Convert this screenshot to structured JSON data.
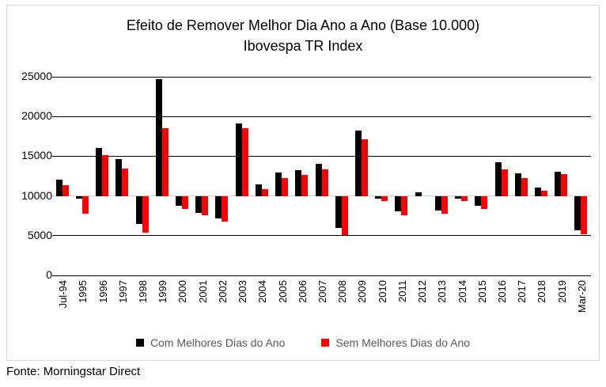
{
  "footer": {
    "source": "Fonte: Morningstar Direct"
  },
  "chart_data": {
    "type": "bar",
    "title": "Efeito de Remover Melhor Dia Ano a Ano (Base 10.000)",
    "subtitle": "Ibovespa TR Index",
    "xlabel": "",
    "ylabel": "",
    "ylim": [
      0,
      25000
    ],
    "yticks": [
      0,
      5000,
      10000,
      15000,
      20000,
      25000
    ],
    "baseline": 10000,
    "grid": true,
    "legend_position": "bottom",
    "categories": [
      "Jul-94",
      "1995",
      "1996",
      "1997",
      "1998",
      "1999",
      "2000",
      "2001",
      "2002",
      "2003",
      "2004",
      "2005",
      "2006",
      "2007",
      "2008",
      "2009",
      "2010",
      "2011",
      "2012",
      "2013",
      "2014",
      "2015",
      "2016",
      "2017",
      "2018",
      "2019",
      "Mar-20"
    ],
    "series": [
      {
        "name": "Com Melhores Dias do Ano",
        "color": "#000000",
        "values": [
          12100,
          9700,
          16000,
          14600,
          6500,
          24700,
          8800,
          7900,
          7200,
          19100,
          11500,
          12900,
          13200,
          14000,
          6000,
          18200,
          9700,
          8100,
          10500,
          8200,
          9700,
          8800,
          14200,
          12800,
          11100,
          13000,
          5700
        ]
      },
      {
        "name": "Sem Melhores Dias do Ano",
        "color": "#ff0000",
        "values": [
          11400,
          7800,
          15100,
          13400,
          5400,
          18500,
          8400,
          7600,
          6800,
          18500,
          10900,
          12300,
          12600,
          13300,
          5100,
          17100,
          9400,
          7600,
          10000,
          7800,
          9400,
          8400,
          13300,
          12300,
          10700,
          12700,
          5200
        ]
      }
    ],
    "gridline_color": "#000000",
    "baseline_color": "#c9c9c9"
  }
}
